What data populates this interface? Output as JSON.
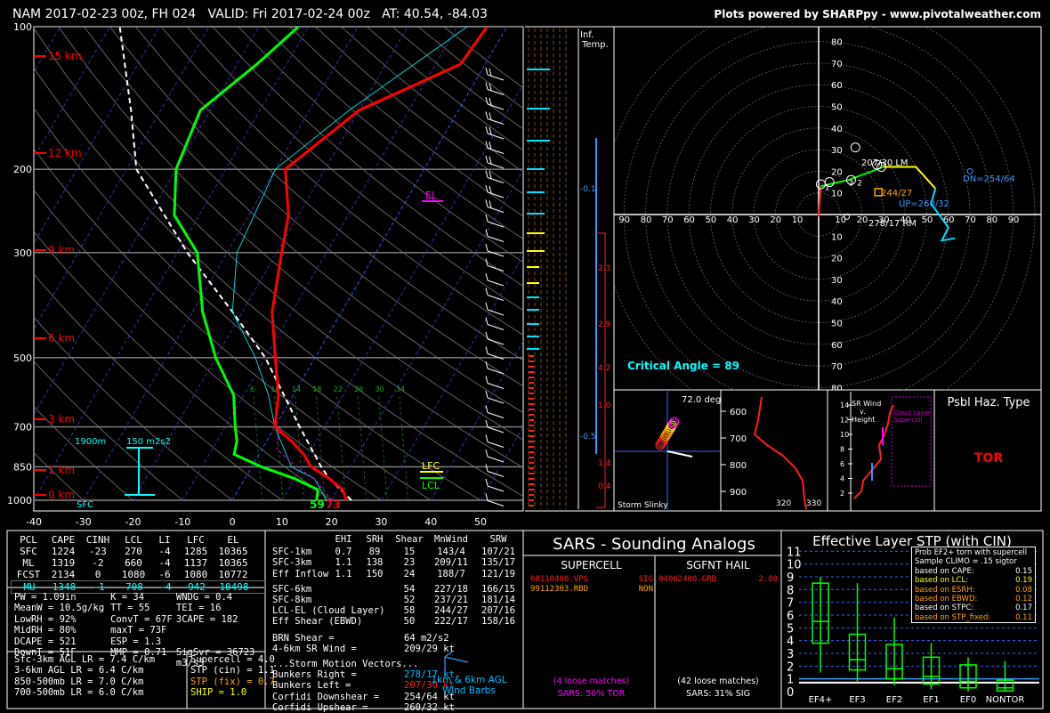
{
  "header": {
    "title": "NAM 2017-02-23 00z, FH 024   VALID: Fri 2017-02-24 00z   AT: 40.54, -84.03",
    "credit": "Plots powered by SHARPpy - www.pivotalweather.com"
  },
  "skewt": {
    "pressure_ticks": [
      "100",
      "200",
      "300",
      "500",
      "700",
      "850",
      "1000"
    ],
    "temp_ticks": [
      "-40",
      "-30",
      "-20",
      "-10",
      "0",
      "10",
      "20",
      "30",
      "40",
      "50"
    ],
    "height_labels": [
      "15 km",
      "12 km",
      "9 km",
      "6 km",
      "3 km",
      "1 km",
      "0 km"
    ],
    "el_label": "EL",
    "lfc_label": "LFC",
    "lcl_label": "LCL",
    "sfc_label": "SFC",
    "eff_depth": "1900m",
    "eff_srh": "150 m2s2",
    "sfc_td": "59",
    "sfc_t": "73",
    "mixing_ratio_labels": [
      "6",
      "10",
      "14",
      "18",
      "22",
      "26",
      "30",
      "34"
    ]
  },
  "inflow": {
    "label_line1": "Inf.",
    "label_line2": "Temp.",
    "ticks": [
      "-0.1",
      "-0.5"
    ],
    "values": [
      "2.3",
      "2.9",
      "4.2",
      "1.0",
      "1.4",
      "0.4"
    ]
  },
  "hodograph": {
    "ring_labels": [
      "10",
      "20",
      "30",
      "40",
      "50",
      "60",
      "70",
      "80"
    ],
    "x_labels": [
      "90",
      "80",
      "70",
      "60",
      "50",
      "40",
      "30",
      "20",
      "10",
      "10",
      "20",
      "30",
      "40",
      "50",
      "60",
      "70",
      "80",
      "90"
    ],
    "lm": "207/30 LM",
    "rm": "278/17 RM",
    "mean": "244/27",
    "up": "UP=260/32",
    "dn": "DN=254/64",
    "critical_angle": "Critical Angle = 89",
    "points": [
      "1",
      "3",
      "2"
    ]
  },
  "slinky": {
    "deg": "72.0 deg",
    "label": "Storm Slinky"
  },
  "theta": {
    "ticks": [
      "600",
      "700",
      "800",
      "900"
    ],
    "bottom": [
      "320",
      "330"
    ]
  },
  "srwind": {
    "title_line1": "SR Wind",
    "title_line2": "v.",
    "title_line3": "Height",
    "ticks": [
      "14",
      "12",
      "10",
      "8",
      "6",
      "4",
      "2"
    ],
    "note": "Cloud Layer Supercell"
  },
  "haz": {
    "title": "Psbl Haz. Type",
    "value": "TOR"
  },
  "parcels": {
    "headers": [
      "PCL",
      "CAPE",
      "CINH",
      "LCL",
      "LI",
      "LFC",
      "EL"
    ],
    "rows": [
      [
        "SFC",
        "1224",
        "-23",
        "270",
        "-4",
        "1285",
        "10365"
      ],
      [
        "ML",
        "1319",
        "-2",
        "660",
        "-4",
        "1137",
        "10365"
      ],
      [
        "FCST",
        "2134",
        "0",
        "1080",
        "-6",
        "1080",
        "10772"
      ],
      [
        "MU",
        "1348",
        "-1",
        "708",
        "-4",
        "942",
        "10498"
      ]
    ]
  },
  "thermo": {
    "left": [
      "PW = 1.09in",
      "MeanW = 10.5g/kg",
      "LowRH = 92%",
      "MidRH = 80%",
      "DCAPE = 521",
      "DownT = 51F"
    ],
    "mid": [
      "K = 34",
      "TT = 55",
      "ConvT = 67F",
      "maxT = 73F",
      "ESP = 1.3",
      "MMP = 0.71"
    ],
    "right": [
      "WNDG = 0.4",
      "TEI = 16",
      "3CAPE = 182",
      "",
      "",
      "SigSvr = 36723 m3/s3"
    ],
    "lapse": [
      "Sfc-3km AGL LR = 7.4 C/km",
      "3-6km AGL LR = 6.4 C/km",
      "850-500mb LR = 7.0 C/km",
      "700-500mb LR = 6.0 C/km"
    ],
    "comp": [
      "Supercell = 4.0",
      "STP (cin) = 1.1",
      "STP (fix) = 0.7",
      "SHIP = 1.0"
    ]
  },
  "kinematic": {
    "headers": [
      "EHI",
      "SRH",
      "Shear",
      "MnWind",
      "SRW"
    ],
    "rows1": [
      [
        "SFC-1km",
        "0.7",
        "89",
        "15",
        "143/4",
        "107/21"
      ],
      [
        "SFC-3km",
        "1.1",
        "138",
        "23",
        "209/11",
        "135/17"
      ],
      [
        "Eff Inflow",
        "1.1",
        "150",
        "24",
        "188/7",
        "121/19"
      ]
    ],
    "rows2": [
      [
        "SFC-6km",
        "",
        "",
        "54",
        "227/18",
        "166/15"
      ],
      [
        "SFC-8km",
        "",
        "",
        "52",
        "237/21",
        "181/14"
      ],
      [
        "LCL-EL (Cloud Layer)",
        "",
        "",
        "58",
        "244/27",
        "207/16"
      ],
      [
        "Eff Shear (EBWD)",
        "",
        "",
        "50",
        "222/17",
        "158/16"
      ]
    ],
    "brn_shear": "BRN Shear =",
    "brn_shear_v": "64 m2/s2",
    "sr46": "4-6km SR Wind =",
    "sr46_v": "209/29 kt",
    "vectors_title": "...Storm Motion Vectors...",
    "vectors": [
      [
        "Bunkers Right =",
        "278/17 kt"
      ],
      [
        "Bunkers Left =",
        "207/30 kt"
      ],
      [
        "Corfidi Downshear =",
        "254/64 kt"
      ],
      [
        "Corfidi Upshear =",
        "260/32 kt"
      ]
    ],
    "barbs_caption1": "1km & 6km AGL",
    "barbs_caption2": "Wind Barbs"
  },
  "sars": {
    "title": "SARS - Sounding Analogs",
    "supercell_head": "SUPERCELL",
    "hail_head": "SGFNT HAIL",
    "sup_rows": [
      [
        "68110400.VPS",
        "SIG"
      ],
      [
        "99112303.RBD",
        "NON"
      ]
    ],
    "hail_rows": [
      [
        "04062400.GRB",
        "2.00"
      ]
    ],
    "sup_matches": "(4 loose matches)",
    "sup_pct": "SARS: 50% TOR",
    "hail_matches": "(42 loose matches)",
    "hail_pct": "SARS: 31% SIG"
  },
  "stp": {
    "title": "Effective Layer STP (with CIN)",
    "yticks": [
      "11",
      "10",
      "9",
      "8",
      "7",
      "6",
      "5",
      "4",
      "3",
      "2",
      "1",
      "0"
    ],
    "categories": [
      "EF4+",
      "EF3",
      "EF2",
      "EF1",
      "EF0",
      "NONTOR"
    ],
    "legend_title": "Prob EF2+ torn with supercell",
    "legend_sub": "Sample CLIMO = .15 sigtor",
    "legend_rows": [
      [
        "based on CAPE:",
        "0.15"
      ],
      [
        "based on LCL:",
        "0.19"
      ],
      [
        "based on ESRH:",
        "0.08"
      ],
      [
        "based on EBWD:",
        "0.12"
      ],
      [
        "based on STPC:",
        "0.17"
      ],
      [
        "based on STP_fixed:",
        "0.11"
      ]
    ]
  },
  "colors": {
    "temp": "#ff0000",
    "dew": "#00ff00",
    "parcel": "#ffffff",
    "wetbulb": "#00ffff",
    "accent": "#00ffff",
    "el": "#ff00ff",
    "lfc": "#ffff00"
  },
  "chart_data": [
    {
      "type": "line",
      "title": "",
      "xlabel": "",
      "ylabel": "",
      "xlim": [
        -40,
        50
      ],
      "ylim": [
        1000,
        100
      ],
      "series": [
        {
          "name": "",
          "x": [
            23,
            21,
            17,
            12,
            9,
            5,
            0,
            -3,
            -8,
            -14,
            -19,
            -22,
            -28,
            -20,
            -5,
            -4
          ],
          "y": [
            1000,
            950,
            900,
            850,
            800,
            750,
            700,
            600,
            500,
            400,
            300,
            250,
            200,
            150,
            120,
            100
          ]
        },
        {
          "name": "",
          "x": [
            17,
            16,
            10,
            2,
            -5,
            -6,
            -8,
            -12,
            -20,
            -28,
            -36,
            -45,
            -50,
            -52,
            -46,
            -42
          ],
          "y": [
            1000,
            950,
            900,
            850,
            800,
            750,
            700,
            600,
            500,
            400,
            300,
            250,
            200,
            150,
            120,
            100
          ]
        }
      ]
    },
    {
      "type": "bar",
      "title": "Effective Layer STP (with CIN)",
      "categories": [
        "EF4+",
        "EF3",
        "EF2",
        "EF1",
        "EF0",
        "NONTOR"
      ],
      "series": [
        {
          "name": "",
          "values": [
            5.5,
            2.5,
            1.8,
            1.2,
            0.8,
            0.3
          ]
        }
      ],
      "ylim": [
        0,
        11
      ]
    }
  ]
}
